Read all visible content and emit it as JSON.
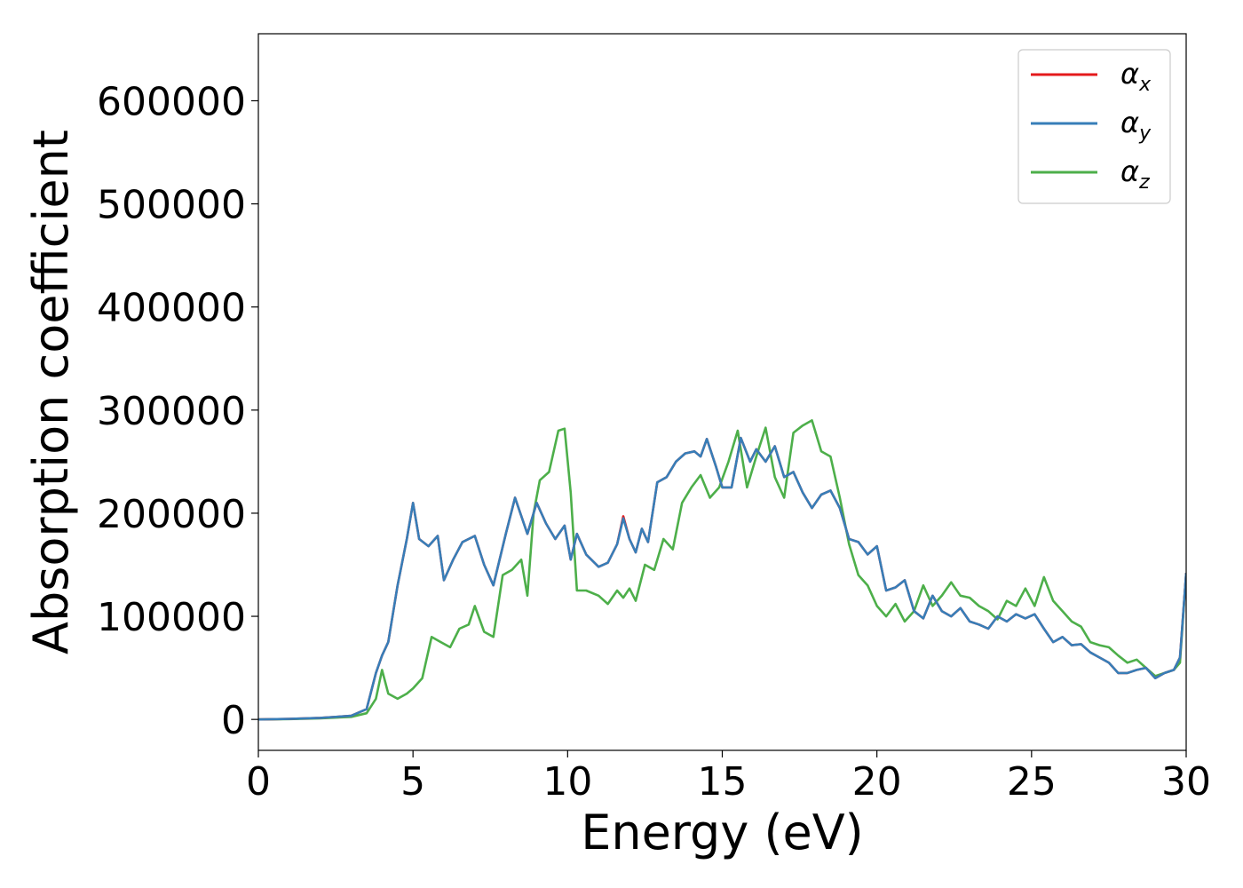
{
  "chart_data": {
    "type": "line",
    "title": "",
    "xlabel": "Energy (eV)",
    "ylabel": "Absorption coefficient",
    "xlim": [
      0,
      30
    ],
    "ylim": [
      -30000,
      665000
    ],
    "xticks": [
      0,
      5,
      10,
      15,
      20,
      25,
      30
    ],
    "yticks": [
      0,
      100000,
      200000,
      300000,
      400000,
      500000,
      600000
    ],
    "xtick_labels": [
      "0",
      "5",
      "10",
      "15",
      "20",
      "25",
      "30"
    ],
    "ytick_labels": [
      "0",
      "100000",
      "200000",
      "300000",
      "400000",
      "500000",
      "600000"
    ],
    "grid": false,
    "legend_position": "top-right",
    "series": [
      {
        "name": "α",
        "subscript": "x",
        "color": "#e41a1c",
        "x": [
          0,
          1,
          2,
          3,
          3.5,
          3.8,
          4,
          4.2,
          4.5,
          4.8,
          5,
          5.2,
          5.5,
          5.8,
          6,
          6.3,
          6.6,
          7,
          7.3,
          7.6,
          8,
          8.3,
          8.7,
          9,
          9.3,
          9.6,
          9.9,
          10.1,
          10.3,
          10.6,
          11,
          11.3,
          11.6,
          11.8,
          12,
          12.2,
          12.4,
          12.6,
          12.9,
          13.2,
          13.5,
          13.8,
          14.1,
          14.3,
          14.5,
          14.8,
          15,
          15.3,
          15.6,
          15.9,
          16.1,
          16.4,
          16.7,
          17,
          17.3,
          17.6,
          17.9,
          18.2,
          18.5,
          18.8,
          19.1,
          19.4,
          19.7,
          20,
          20.3,
          20.6,
          20.9,
          21.2,
          21.5,
          21.8,
          22.1,
          22.4,
          22.7,
          23,
          23.3,
          23.6,
          23.9,
          24.2,
          24.5,
          24.8,
          25.1,
          25.4,
          25.7,
          26,
          26.3,
          26.6,
          26.9,
          27.2,
          27.5,
          27.8,
          28.1,
          28.4,
          28.7,
          29,
          29.3,
          29.6,
          29.8,
          30
        ],
        "values": [
          0,
          500,
          1500,
          3500,
          10000,
          45000,
          62000,
          75000,
          130000,
          175000,
          210000,
          175000,
          168000,
          178000,
          135000,
          155000,
          172000,
          178000,
          150000,
          130000,
          180000,
          215000,
          180000,
          210000,
          190000,
          175000,
          188000,
          155000,
          180000,
          160000,
          148000,
          152000,
          170000,
          197000,
          175000,
          162000,
          185000,
          172000,
          230000,
          235000,
          250000,
          258000,
          260000,
          255000,
          272000,
          245000,
          225000,
          225000,
          273000,
          250000,
          262000,
          250000,
          265000,
          235000,
          240000,
          220000,
          205000,
          218000,
          222000,
          205000,
          175000,
          172000,
          160000,
          168000,
          125000,
          128000,
          135000,
          105000,
          98000,
          120000,
          105000,
          100000,
          108000,
          95000,
          92000,
          88000,
          100000,
          95000,
          102000,
          98000,
          102000,
          88000,
          75000,
          80000,
          72000,
          73000,
          65000,
          60000,
          55000,
          45000,
          45000,
          48000,
          50000,
          40000,
          45000,
          48000,
          60000,
          142000
        ]
      },
      {
        "name": "α",
        "subscript": "y",
        "color": "#377eb8",
        "x": [
          0,
          1,
          2,
          3,
          3.5,
          3.8,
          4,
          4.2,
          4.5,
          4.8,
          5,
          5.2,
          5.5,
          5.8,
          6,
          6.3,
          6.6,
          7,
          7.3,
          7.6,
          8,
          8.3,
          8.7,
          9,
          9.3,
          9.6,
          9.9,
          10.1,
          10.3,
          10.6,
          11,
          11.3,
          11.6,
          11.8,
          12,
          12.2,
          12.4,
          12.6,
          12.9,
          13.2,
          13.5,
          13.8,
          14.1,
          14.3,
          14.5,
          14.8,
          15,
          15.3,
          15.6,
          15.9,
          16.1,
          16.4,
          16.7,
          17,
          17.3,
          17.6,
          17.9,
          18.2,
          18.5,
          18.8,
          19.1,
          19.4,
          19.7,
          20,
          20.3,
          20.6,
          20.9,
          21.2,
          21.5,
          21.8,
          22.1,
          22.4,
          22.7,
          23,
          23.3,
          23.6,
          23.9,
          24.2,
          24.5,
          24.8,
          25.1,
          25.4,
          25.7,
          26,
          26.3,
          26.6,
          26.9,
          27.2,
          27.5,
          27.8,
          28.1,
          28.4,
          28.7,
          29,
          29.3,
          29.6,
          29.8,
          30
        ],
        "values": [
          0,
          500,
          1500,
          3500,
          10000,
          45000,
          62000,
          75000,
          130000,
          175000,
          210000,
          175000,
          168000,
          178000,
          135000,
          155000,
          172000,
          178000,
          150000,
          130000,
          180000,
          215000,
          180000,
          210000,
          190000,
          175000,
          188000,
          155000,
          180000,
          160000,
          148000,
          152000,
          170000,
          195000,
          175000,
          162000,
          185000,
          172000,
          230000,
          235000,
          250000,
          258000,
          260000,
          255000,
          272000,
          245000,
          225000,
          225000,
          273000,
          250000,
          262000,
          250000,
          265000,
          235000,
          240000,
          220000,
          205000,
          218000,
          222000,
          205000,
          175000,
          172000,
          160000,
          168000,
          125000,
          128000,
          135000,
          105000,
          98000,
          120000,
          105000,
          100000,
          108000,
          95000,
          92000,
          88000,
          100000,
          95000,
          102000,
          98000,
          102000,
          88000,
          75000,
          80000,
          72000,
          73000,
          65000,
          60000,
          55000,
          45000,
          45000,
          48000,
          50000,
          40000,
          45000,
          48000,
          60000,
          142000
        ]
      },
      {
        "name": "α",
        "subscript": "z",
        "color": "#4daf4a",
        "x": [
          0,
          1,
          2,
          3,
          3.5,
          3.8,
          4,
          4.2,
          4.5,
          4.8,
          5,
          5.3,
          5.6,
          5.9,
          6.2,
          6.5,
          6.8,
          7,
          7.3,
          7.6,
          7.9,
          8.2,
          8.5,
          8.7,
          8.9,
          9.1,
          9.4,
          9.7,
          9.9,
          10.1,
          10.3,
          10.6,
          11,
          11.3,
          11.6,
          11.8,
          12,
          12.2,
          12.5,
          12.8,
          13.1,
          13.4,
          13.7,
          14,
          14.3,
          14.6,
          14.9,
          15.2,
          15.5,
          15.8,
          16.1,
          16.4,
          16.7,
          17,
          17.3,
          17.6,
          17.9,
          18.2,
          18.5,
          18.8,
          19.1,
          19.4,
          19.7,
          20,
          20.3,
          20.6,
          20.9,
          21.2,
          21.5,
          21.8,
          22.1,
          22.4,
          22.7,
          23,
          23.3,
          23.6,
          23.9,
          24.2,
          24.5,
          24.8,
          25.1,
          25.4,
          25.7,
          26,
          26.3,
          26.6,
          26.9,
          27.2,
          27.5,
          27.8,
          28.1,
          28.4,
          28.7,
          29,
          29.3,
          29.6,
          29.8,
          30
        ],
        "values": [
          0,
          300,
          1000,
          2500,
          6000,
          20000,
          48000,
          25000,
          20000,
          25000,
          30000,
          40000,
          80000,
          75000,
          70000,
          88000,
          92000,
          110000,
          85000,
          80000,
          140000,
          145000,
          155000,
          120000,
          200000,
          232000,
          240000,
          280000,
          282000,
          220000,
          125000,
          125000,
          120000,
          112000,
          125000,
          118000,
          127000,
          115000,
          150000,
          145000,
          175000,
          165000,
          210000,
          225000,
          237000,
          215000,
          225000,
          250000,
          280000,
          225000,
          255000,
          283000,
          235000,
          215000,
          278000,
          285000,
          290000,
          260000,
          255000,
          215000,
          170000,
          140000,
          130000,
          110000,
          100000,
          112000,
          95000,
          105000,
          130000,
          110000,
          120000,
          133000,
          120000,
          118000,
          110000,
          105000,
          97000,
          115000,
          110000,
          127000,
          110000,
          138000,
          115000,
          105000,
          95000,
          90000,
          75000,
          72000,
          70000,
          62000,
          55000,
          58000,
          50000,
          42000,
          45000,
          48000,
          55000,
          142000
        ]
      }
    ]
  }
}
